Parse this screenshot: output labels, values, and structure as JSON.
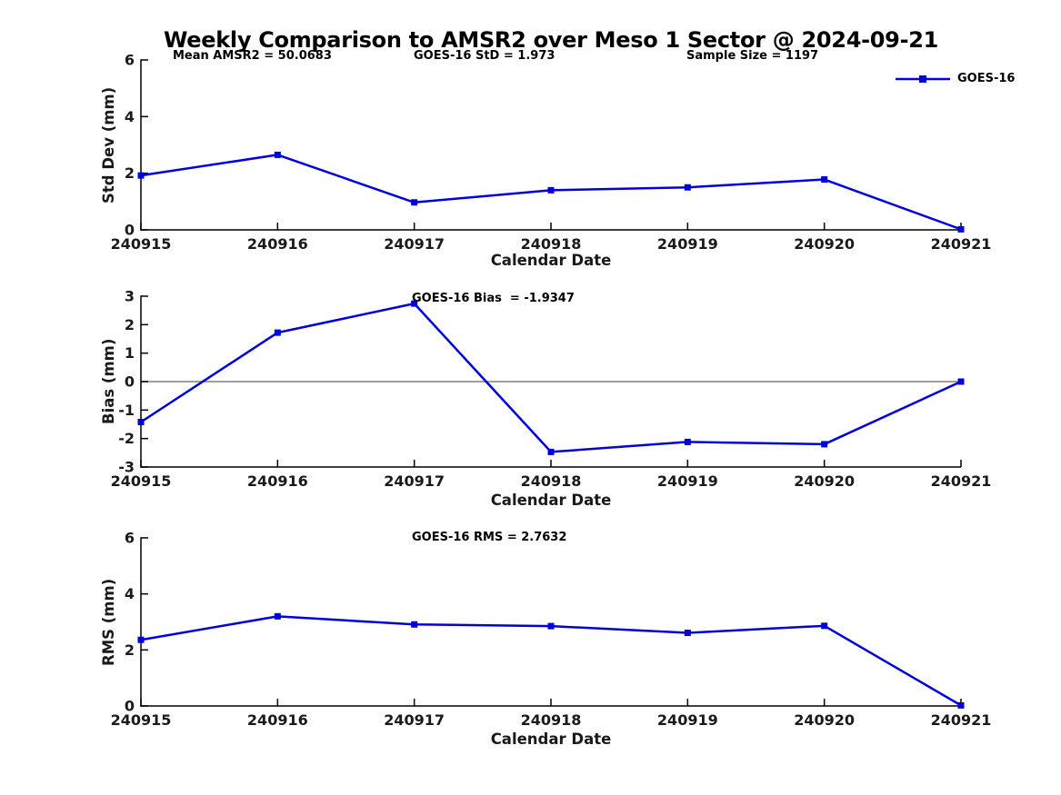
{
  "figure": {
    "title": "Weekly Comparison to AMSR2 over Meso 1 Sector @ 2024-09-21",
    "background_color": "#ffffff",
    "series_color": "#0000dd",
    "axis_color": "#000000",
    "zero_line_color": "#808080",
    "legend_label": "GOES-16"
  },
  "chart_data": [
    {
      "type": "line",
      "panel": "std_dev",
      "categories": [
        "240915",
        "240916",
        "240917",
        "240918",
        "240919",
        "240920",
        "240921"
      ],
      "series": [
        {
          "name": "GOES-16",
          "values": [
            1.92,
            2.65,
            0.97,
            1.4,
            1.5,
            1.78,
            0.02
          ]
        }
      ],
      "xlabel": "Calendar Date",
      "ylabel": "Std Dev (mm)",
      "ylim": [
        0,
        6
      ],
      "yticks": [
        0,
        2,
        4,
        6
      ],
      "grid": false,
      "zero_line": false,
      "legend_position": "upper-right-outside",
      "annotations": [
        {
          "text": "Mean AMSR2 = 50.0683"
        },
        {
          "text": "GOES-16 StD = 1.973"
        },
        {
          "text": "Sample Size = 1197"
        }
      ]
    },
    {
      "type": "line",
      "panel": "bias",
      "categories": [
        "240915",
        "240916",
        "240917",
        "240918",
        "240919",
        "240920",
        "240921"
      ],
      "series": [
        {
          "name": "GOES-16",
          "values": [
            -1.42,
            1.72,
            2.74,
            -2.47,
            -2.12,
            -2.2,
            0.0
          ]
        }
      ],
      "xlabel": "Calendar Date",
      "ylabel": "Bias (mm)",
      "ylim": [
        -3,
        3
      ],
      "yticks": [
        -3,
        -2,
        -1,
        0,
        1,
        2,
        3
      ],
      "grid": false,
      "zero_line": true,
      "annotations": [
        {
          "text": "GOES-16 Bias  = -1.9347"
        }
      ]
    },
    {
      "type": "line",
      "panel": "rms",
      "categories": [
        "240915",
        "240916",
        "240917",
        "240918",
        "240919",
        "240920",
        "240921"
      ],
      "series": [
        {
          "name": "GOES-16",
          "values": [
            2.36,
            3.2,
            2.91,
            2.85,
            2.61,
            2.86,
            0.02
          ]
        }
      ],
      "xlabel": "Calendar Date",
      "ylabel": "RMS (mm)",
      "ylim": [
        0,
        6
      ],
      "yticks": [
        0,
        2,
        4,
        6
      ],
      "grid": false,
      "zero_line": false,
      "annotations": [
        {
          "text": "GOES-16 RMS = 2.7632"
        }
      ]
    }
  ]
}
